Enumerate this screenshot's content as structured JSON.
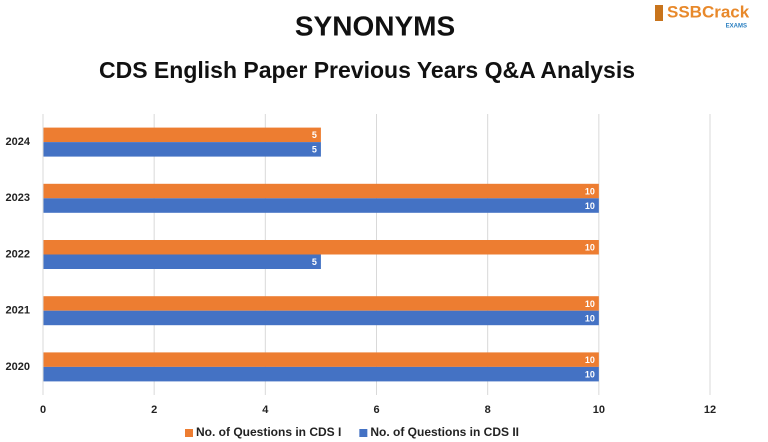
{
  "logo": {
    "text": "SSBCrack",
    "subtext": "EXAMS"
  },
  "chart_data": {
    "type": "hbar",
    "title": "SYNONYMS",
    "subtitle": "CDS English Paper Previous Years Q&A Analysis",
    "categories": [
      "2024",
      "2023",
      "2022",
      "2021",
      "2020"
    ],
    "series": [
      {
        "name": "No. of Questions in CDS I",
        "color": "#ed7d31",
        "values": [
          5,
          10,
          10,
          10,
          10
        ]
      },
      {
        "name": "No. of Questions in CDS II",
        "color": "#4472c4",
        "values": [
          5,
          10,
          5,
          10,
          10
        ]
      }
    ],
    "xlim": [
      0,
      12
    ],
    "xticks": [
      0,
      2,
      4,
      6,
      8,
      10,
      12
    ],
    "grid": true,
    "legend": "bottom"
  }
}
